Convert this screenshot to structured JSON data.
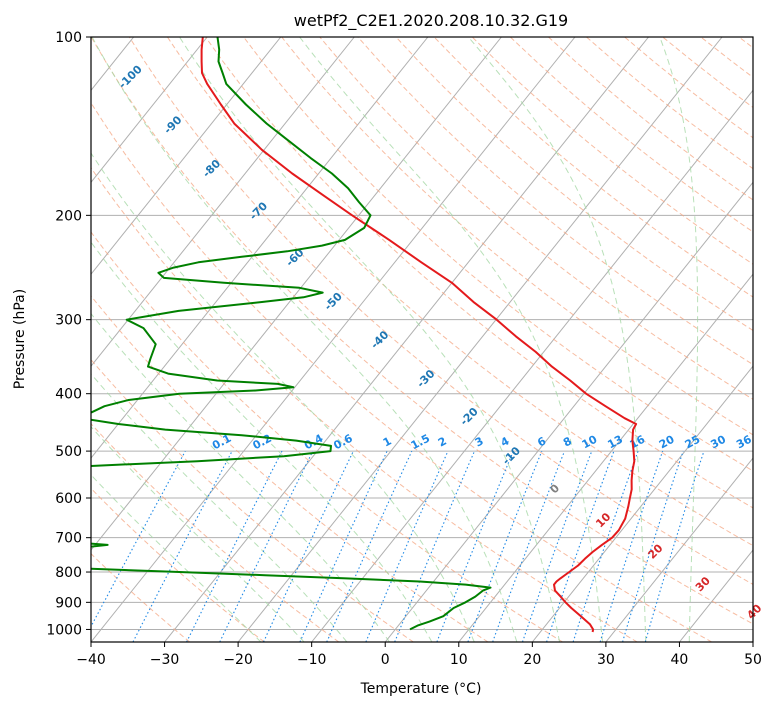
{
  "chart_data": {
    "type": "line",
    "chart_kind": "Skew-T log-P diagram",
    "title": "wetPf2_C2E1.2020.208.10.32.G19",
    "xlabel": "Temperature (°C)",
    "ylabel": "Pressure (hPa)",
    "xlim": [
      -40,
      50
    ],
    "ylim": [
      1050,
      100
    ],
    "y_scale": "log",
    "x_ticks": [
      -40,
      -30,
      -20,
      -10,
      0,
      10,
      20,
      30,
      40,
      50
    ],
    "x_tick_labels": [
      "−40",
      "−30",
      "−20",
      "−10",
      "0",
      "10",
      "20",
      "30",
      "40",
      "50"
    ],
    "y_ticks": [
      100,
      200,
      300,
      400,
      500,
      600,
      700,
      800,
      900,
      1000
    ],
    "y_tick_labels": [
      "100",
      "200",
      "300",
      "400",
      "500",
      "600",
      "700",
      "800",
      "900",
      "1000"
    ],
    "grid": true,
    "colors": {
      "temperature": "#e41a1c",
      "dewpoint": "#008000",
      "isotherm_grid": "#b0b0b0",
      "dry_adiabat": "#f4a582",
      "moist_adiabat": "#a6d8a6",
      "mixing_ratio": "#1e88e5",
      "isotherm_label_warm": "#d62728",
      "isotherm_label_cold": "#1f77b4",
      "isotherm_label_zero": "#808080"
    },
    "series": [
      {
        "key": "temperature",
        "pressure": [
          1010,
          1000,
          980,
          950,
          920,
          900,
          880,
          860,
          840,
          830,
          820,
          800,
          780,
          760,
          740,
          720,
          700,
          680,
          650,
          620,
          600,
          580,
          560,
          540,
          520,
          500,
          480,
          460,
          450,
          440,
          420,
          400,
          380,
          360,
          340,
          320,
          300,
          280,
          260,
          240,
          220,
          200,
          185,
          170,
          155,
          140,
          130,
          120,
          115,
          110,
          105,
          100
        ],
        "temp_c": [
          27.1,
          26.9,
          25.9,
          23.8,
          21.6,
          20.2,
          18.9,
          17.5,
          16.7,
          16.7,
          16.9,
          17.4,
          17.9,
          18.1,
          18.4,
          18.9,
          19.5,
          19.6,
          19.2,
          18.3,
          17.6,
          16.9,
          15.9,
          15.0,
          14.2,
          13.0,
          11.7,
          10.6,
          10.4,
          8.2,
          4.3,
          0.3,
          -3.3,
          -7.3,
          -11.1,
          -15.5,
          -19.9,
          -25.0,
          -30.0,
          -36.4,
          -43.2,
          -50.9,
          -57.0,
          -63.6,
          -70.3,
          -76.9,
          -80.8,
          -84.9,
          -86.8,
          -88.1,
          -89.4,
          -90.6
        ]
      },
      {
        "key": "dewpoint",
        "pressure": [
          1000,
          985,
          970,
          950,
          920,
          900,
          880,
          860,
          850,
          840,
          830,
          820,
          810,
          800,
          790,
          780,
          770,
          760,
          750,
          740,
          730,
          720,
          710,
          700,
          690,
          680,
          660,
          640,
          620,
          600,
          580,
          560,
          550,
          540,
          530,
          520,
          510,
          500,
          490,
          480,
          470,
          460,
          450,
          440,
          430,
          420,
          410,
          400,
          395,
          390,
          385,
          380,
          370,
          360,
          350,
          330,
          310,
          300,
          290,
          280,
          275,
          270,
          265,
          260,
          255,
          250,
          245,
          240,
          235,
          230,
          225,
          220,
          210,
          200,
          190,
          180,
          170,
          160,
          150,
          140,
          130,
          120,
          115,
          110,
          105,
          100
        ],
        "temp_c": [
          2.0,
          2.6,
          3.8,
          5.1,
          5.6,
          6.6,
          7.3,
          7.7,
          8.4,
          4.7,
          -1.9,
          -12.2,
          -23.6,
          -35.6,
          -48.0,
          -60.6,
          -73.3,
          -85.9,
          -72.3,
          -59.0,
          -52.7,
          -48.3,
          -55.2,
          -62.0,
          -75.0,
          -88.0,
          -101.0,
          -114.0,
          -126.0,
          -137.0,
          -147.0,
          -155.0,
          -101.5,
          -76.5,
          -59.6,
          -45.2,
          -34.0,
          -28.2,
          -28.7,
          -34.0,
          -42.0,
          -53.0,
          -60.0,
          -65.7,
          -64.9,
          -63.8,
          -61.2,
          -55.0,
          -45.0,
          -40.2,
          -42.7,
          -51.3,
          -58.7,
          -62.2,
          -62.7,
          -63.6,
          -67.0,
          -70.2,
          -64.1,
          -53.6,
          -48.6,
          -46.5,
          -50.2,
          -61.0,
          -69.7,
          -71.0,
          -69.5,
          -66.7,
          -61.4,
          -55.8,
          -51.7,
          -49.2,
          -47.9,
          -48.4,
          -51.4,
          -54.4,
          -58.2,
          -62.8,
          -67.5,
          -72.5,
          -77.4,
          -82.3,
          -84.0,
          -85.8,
          -87.0,
          -88.6
        ]
      }
    ],
    "isotherm_labels": [
      {
        "value": "-100",
        "pressure": 117,
        "temp_c": -96
      },
      {
        "value": "-90",
        "pressure": 141,
        "temp_c": -85
      },
      {
        "value": "-80",
        "pressure": 167,
        "temp_c": -75
      },
      {
        "value": "-70",
        "pressure": 197,
        "temp_c": -64
      },
      {
        "value": "-60",
        "pressure": 236,
        "temp_c": -54
      },
      {
        "value": "-50",
        "pressure": 280,
        "temp_c": -44
      },
      {
        "value": "-40",
        "pressure": 325,
        "temp_c": -33.5
      },
      {
        "value": "-30",
        "pressure": 378,
        "temp_c": -23
      },
      {
        "value": "-20",
        "pressure": 438,
        "temp_c": -13
      },
      {
        "value": "-10",
        "pressure": 510,
        "temp_c": -3
      },
      {
        "value": "0",
        "pressure": 580,
        "temp_c": 6.5
      },
      {
        "value": "10",
        "pressure": 655,
        "temp_c": 16.5
      },
      {
        "value": "20",
        "pressure": 740,
        "temp_c": 27
      },
      {
        "value": "30",
        "pressure": 840,
        "temp_c": 37
      },
      {
        "value": "40",
        "pressure": 935,
        "temp_c": 47
      }
    ],
    "mixing_ratio_labels": [
      {
        "value": "0.1",
        "x_temp_at_top": -22
      },
      {
        "value": "0.2",
        "x_temp_at_top": -16.5
      },
      {
        "value": "0.4",
        "x_temp_at_top": -9.5
      },
      {
        "value": "0.6",
        "x_temp_at_top": -5.5
      },
      {
        "value": "1",
        "x_temp_at_top": 0.5
      },
      {
        "value": "1.5",
        "x_temp_at_top": 5
      },
      {
        "value": "2",
        "x_temp_at_top": 8
      },
      {
        "value": "3",
        "x_temp_at_top": 13
      },
      {
        "value": "4",
        "x_temp_at_top": 16.5
      },
      {
        "value": "6",
        "x_temp_at_top": 21.5
      },
      {
        "value": "8",
        "x_temp_at_top": 25
      },
      {
        "value": "10",
        "x_temp_at_top": 28
      },
      {
        "value": "13",
        "x_temp_at_top": 31.5
      },
      {
        "value": "16",
        "x_temp_at_top": 34.5
      },
      {
        "value": "20",
        "x_temp_at_top": 38.5
      },
      {
        "value": "25",
        "x_temp_at_top": 42
      },
      {
        "value": "30",
        "x_temp_at_top": 45.5
      },
      {
        "value": "36",
        "x_temp_at_top": 49
      }
    ]
  }
}
